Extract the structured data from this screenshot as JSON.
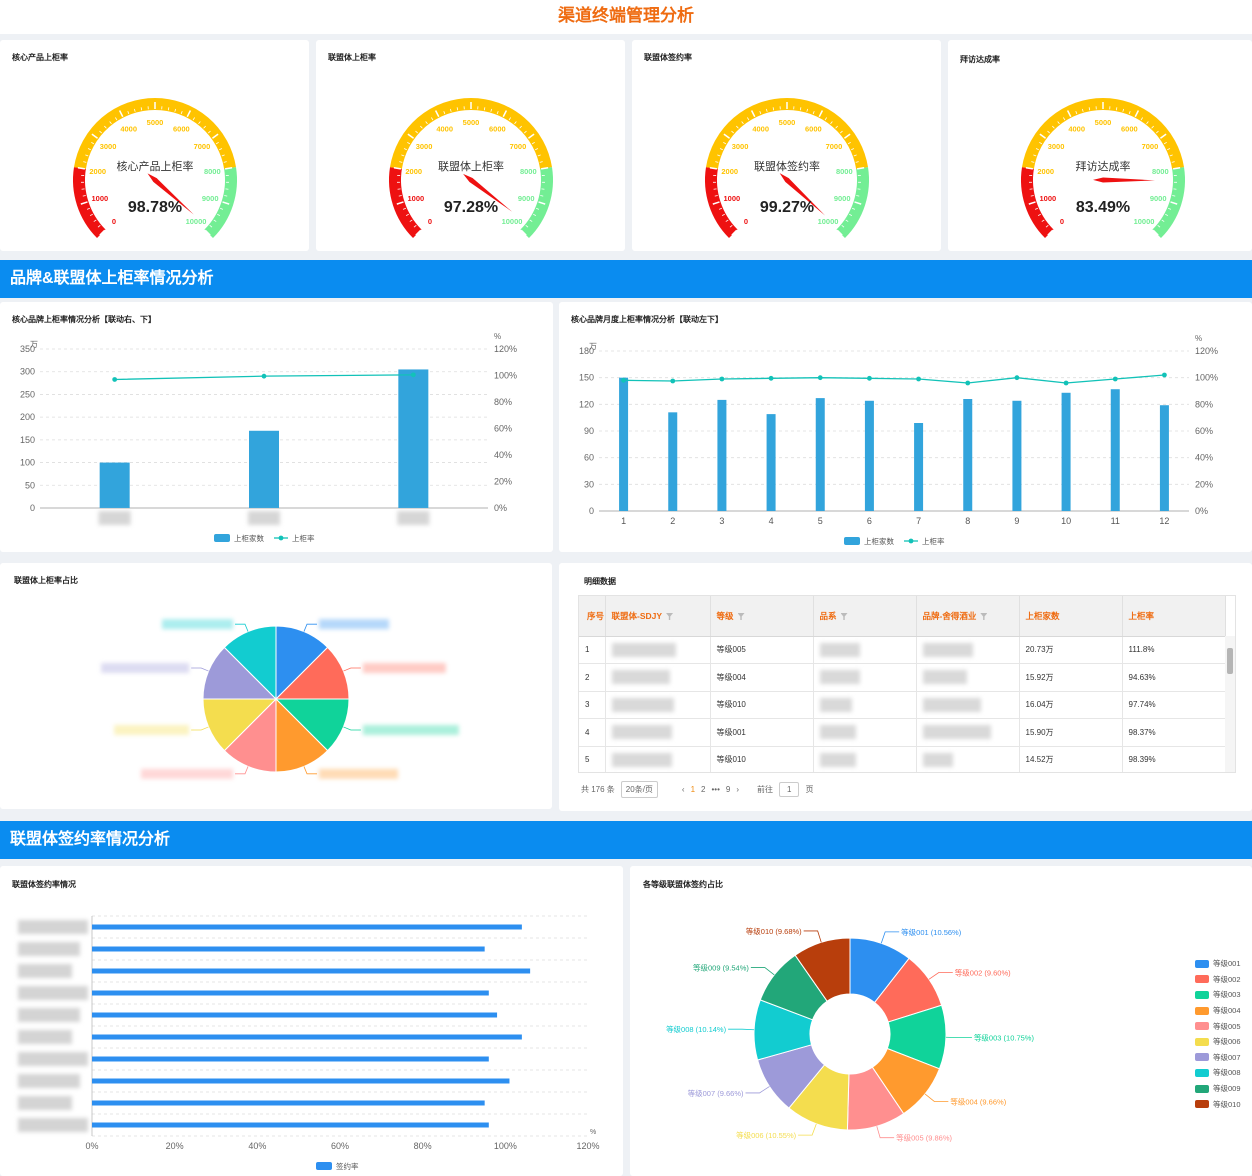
{
  "page_title": "渠道终端管理分析",
  "gauges": [
    {
      "title": "核心产品上柜率",
      "center_label": "核心产品上柜率",
      "value": "98.78%",
      "fraction": 0.9878
    },
    {
      "title": "联盟体上柜率",
      "center_label": "联盟体上柜率",
      "value": "97.28%",
      "fraction": 0.9728
    },
    {
      "title": "联盟体签约率",
      "center_label": "联盟体签约率",
      "value": "99.27%",
      "fraction": 0.9927
    },
    {
      "title": "拜访达成率",
      "center_label": "拜访达成率",
      "value": "83.49%",
      "fraction": 0.8349
    }
  ],
  "gauge_ticks": [
    "0",
    "1000",
    "2000",
    "3000",
    "4000",
    "5000",
    "6000",
    "7000",
    "8000",
    "9000",
    "10000"
  ],
  "colors": {
    "accent": "#ef6c12",
    "band": "#0a8cf0",
    "bar": "#32a4dc",
    "line": "#12c2b8",
    "hbar": "#2d8ff0",
    "red": "#ee1111",
    "yellow": "#ffc300",
    "green": "#73ee94"
  },
  "section1_title": "品牌&联盟体上柜率情况分析",
  "section2_title": "联盟体签约率情况分析",
  "brand_chart_title": "核心品牌上柜率情况分析【联动右、下】",
  "monthly_chart_title": "核心品牌月度上柜率情况分析【联动左下】",
  "alliance_pie_title": "联盟体上柜率占比",
  "detail_title": "明细数据",
  "sign_chart_title": "联盟体签约率情况",
  "grade_pie_title": "各等级联盟体签约占比",
  "legend": {
    "count": "上柜家数",
    "rate": "上柜率",
    "sign": "签约率"
  },
  "chart_data": [
    {
      "type": "bar",
      "name": "核心品牌上柜率情况分析【联动右、下】",
      "categories": [
        "",
        "",
        ""
      ],
      "series": [
        {
          "name": "上柜家数",
          "values": [
            100,
            170,
            305
          ]
        },
        {
          "name": "上柜率",
          "values": [
            97,
            99.5,
            100.5
          ]
        }
      ],
      "y_unit": "万",
      "y2_unit": "%",
      "ylim": [
        0,
        350
      ],
      "yticks": [
        "0",
        "50",
        "100",
        "150",
        "200",
        "250",
        "300",
        "350"
      ],
      "y2ticks": [
        "0%",
        "20%",
        "40%",
        "60%",
        "80%",
        "100%",
        "120%"
      ]
    },
    {
      "type": "bar",
      "name": "核心品牌月度上柜率情况分析【联动左下】",
      "categories": [
        "1",
        "2",
        "3",
        "4",
        "5",
        "6",
        "7",
        "8",
        "9",
        "10",
        "11",
        "12"
      ],
      "series": [
        {
          "name": "上柜家数",
          "values": [
            150,
            111,
            125,
            109,
            127,
            124,
            99,
            126,
            124,
            133,
            137,
            119
          ]
        },
        {
          "name": "上柜率",
          "values": [
            98,
            97.5,
            99,
            99.5,
            100,
            99.5,
            99,
            96,
            100,
            96,
            99,
            102
          ]
        }
      ],
      "y_unit": "万",
      "y2_unit": "%",
      "ylim": [
        0,
        180
      ],
      "yticks": [
        "0",
        "30",
        "60",
        "90",
        "120",
        "150",
        "180"
      ],
      "y2ticks": [
        "0%",
        "20%",
        "40%",
        "60%",
        "80%",
        "100%",
        "120%"
      ]
    },
    {
      "type": "pie",
      "name": "联盟体上柜率占比",
      "values": [
        12.5,
        12.5,
        12.5,
        12.5,
        12.5,
        12.5,
        12.5,
        12.5
      ],
      "colors": [
        "#2d8ff0",
        "#ff6b5a",
        "#10d39a",
        "#ff9a2e",
        "#ff8f8f",
        "#f4dd4e",
        "#9d9ad9",
        "#12ccd0",
        "#22a779",
        "#b83e0c"
      ]
    },
    {
      "type": "bar",
      "orientation": "horizontal",
      "name": "联盟体签约率情况",
      "series": [
        {
          "name": "签约率",
          "values": [
            104,
            95,
            106,
            96,
            98,
            104,
            96,
            101,
            95,
            96
          ]
        }
      ],
      "xlim": [
        0,
        120
      ],
      "xticks": [
        "0%",
        "20%",
        "40%",
        "60%",
        "80%",
        "100%",
        "120%"
      ],
      "x_unit": "%"
    },
    {
      "type": "pie",
      "donut": true,
      "name": "各等级联盟体签约占比",
      "labels": [
        "等级001",
        "等级002",
        "等级003",
        "等级004",
        "等级005",
        "等级006",
        "等级007",
        "等级008",
        "等级009",
        "等级010"
      ],
      "values": [
        10.56,
        9.6,
        10.75,
        9.66,
        9.86,
        10.55,
        9.66,
        10.14,
        9.54,
        9.68
      ],
      "slice_labels": [
        "等级001 (10.56%)",
        "等级002 (9.60%)",
        "等级003 (10.75%)",
        "等级004 (9.66%)",
        "等级005 (9.86%)",
        "等级006 (10.55%)",
        "等级007 (9.66%)",
        "等级008 (10.14%)",
        "等级009 (9.54%)",
        "等级010 (9.68%)"
      ],
      "colors": [
        "#2d8ff0",
        "#ff6b5a",
        "#10d39a",
        "#ff9a2e",
        "#ff8f8f",
        "#f4dd4e",
        "#9d9ad9",
        "#12ccd0",
        "#22a779",
        "#b83e0c"
      ]
    }
  ],
  "table": {
    "headers": [
      "序号",
      "联盟体-SDJY",
      "等级",
      "品系",
      "品牌-舍得酒业",
      "上柜家数",
      "上柜率"
    ],
    "rows": [
      {
        "idx": "1",
        "grade": "等级005",
        "count": "20.73万",
        "rate": "111.8%"
      },
      {
        "idx": "2",
        "grade": "等级004",
        "count": "15.92万",
        "rate": "94.63%"
      },
      {
        "idx": "3",
        "grade": "等级010",
        "count": "16.04万",
        "rate": "97.74%"
      },
      {
        "idx": "4",
        "grade": "等级001",
        "count": "15.90万",
        "rate": "98.37%"
      },
      {
        "idx": "5",
        "grade": "等级010",
        "count": "14.52万",
        "rate": "98.39%"
      }
    ]
  },
  "pager": {
    "total": "共 176 条",
    "size": "20条/页",
    "prev": "‹",
    "p1": "1",
    "p2": "2",
    "dots": "•••",
    "p9": "9",
    "next": "›",
    "goto": "前往",
    "goto_val": "1",
    "page_unit": "页"
  }
}
